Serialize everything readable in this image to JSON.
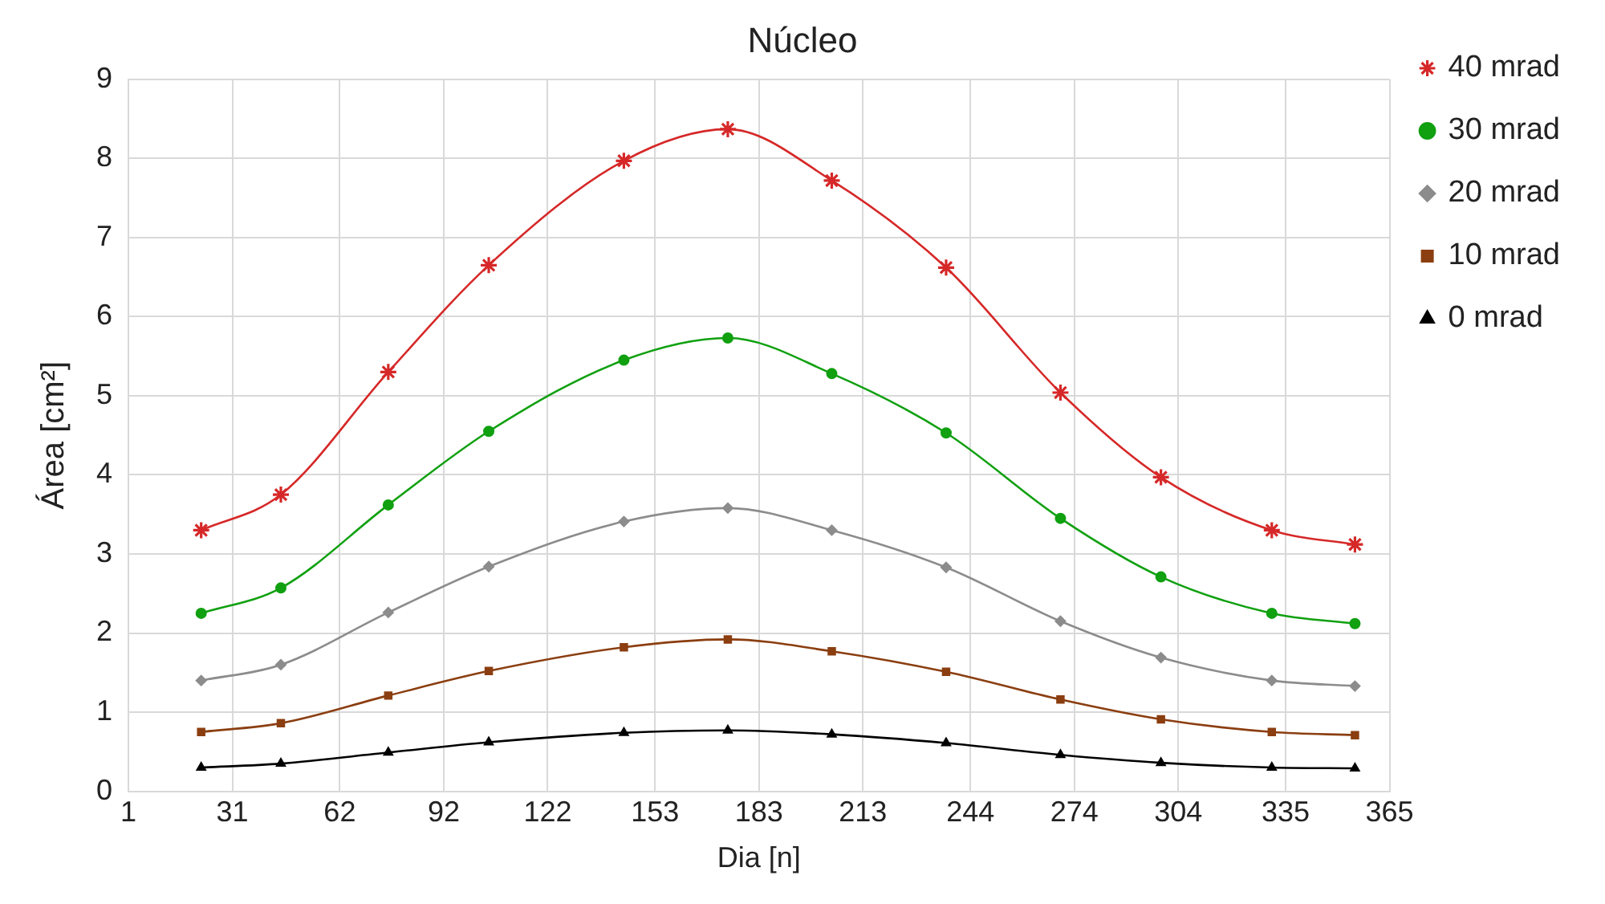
{
  "chart_data": {
    "type": "line",
    "title": "Núcleo",
    "xlabel": "Dia [n]",
    "ylabel": "Área [cm²]",
    "x": [
      22,
      45,
      76,
      105,
      144,
      174,
      204,
      237,
      270,
      299,
      331,
      355
    ],
    "xlim": [
      1,
      365
    ],
    "xticks": [
      1,
      31,
      62,
      92,
      122,
      153,
      183,
      213,
      244,
      274,
      304,
      335,
      365
    ],
    "ylim": [
      0,
      9
    ],
    "yticks": [
      0,
      1,
      2,
      3,
      4,
      5,
      6,
      7,
      8,
      9
    ],
    "grid": true,
    "legend": "right",
    "series": [
      {
        "name": "40 mrad",
        "color": "#d62828",
        "marker": "cross",
        "values": [
          3.3,
          3.75,
          5.3,
          6.65,
          7.97,
          8.37,
          7.72,
          6.62,
          5.04,
          3.97,
          3.3,
          3.12
        ]
      },
      {
        "name": "30 mrad",
        "color": "#10a010",
        "marker": "circle",
        "values": [
          2.25,
          2.57,
          3.62,
          4.55,
          5.45,
          5.73,
          5.28,
          4.53,
          3.45,
          2.71,
          2.25,
          2.12
        ]
      },
      {
        "name": "20 mrad",
        "color": "#8c8c8c",
        "marker": "diamond",
        "values": [
          1.4,
          1.6,
          2.26,
          2.84,
          3.41,
          3.58,
          3.3,
          2.83,
          2.15,
          1.69,
          1.4,
          1.33
        ]
      },
      {
        "name": "10 mrad",
        "color": "#8b3e10",
        "marker": "square",
        "values": [
          0.75,
          0.86,
          1.21,
          1.52,
          1.82,
          1.92,
          1.77,
          1.51,
          1.16,
          0.91,
          0.75,
          0.71
        ]
      },
      {
        "name": "0 mrad",
        "color": "#000000",
        "marker": "triangle",
        "values": [
          0.3,
          0.35,
          0.49,
          0.62,
          0.74,
          0.77,
          0.72,
          0.61,
          0.46,
          0.36,
          0.3,
          0.29
        ]
      }
    ]
  }
}
